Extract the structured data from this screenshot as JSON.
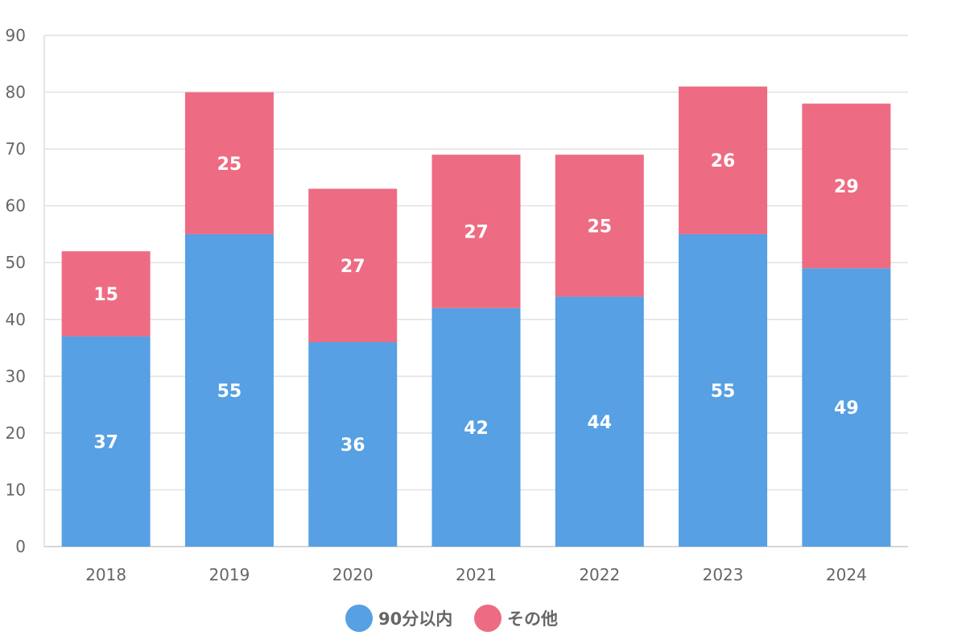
{
  "chart_data": {
    "type": "bar",
    "stacked": true,
    "categories": [
      "2018",
      "2019",
      "2020",
      "2021",
      "2022",
      "2023",
      "2024"
    ],
    "series": [
      {
        "name": "90分以内",
        "color": "#56a0e3",
        "values": [
          37,
          55,
          36,
          42,
          44,
          55,
          49
        ]
      },
      {
        "name": "その他",
        "color": "#ed6c83",
        "values": [
          15,
          25,
          27,
          27,
          25,
          26,
          29
        ]
      }
    ],
    "ylim": [
      0,
      90
    ],
    "yticks": [
      0,
      10,
      20,
      30,
      40,
      50,
      60,
      70,
      80,
      90
    ],
    "grid": true,
    "legend": "bottom-center",
    "data_labels": true
  }
}
